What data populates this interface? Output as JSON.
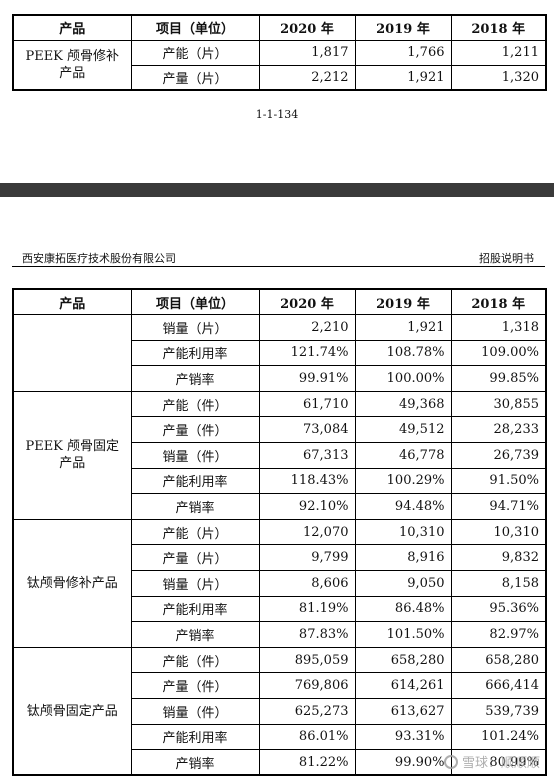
{
  "table1": {
    "headers": [
      "产品",
      "项目（单位）",
      "2020 年",
      "2019 年",
      "2018 年"
    ],
    "product": "PEEK 颅骨修补产品",
    "rows": [
      {
        "item": "产能（片）",
        "v2020": "1,817",
        "v2019": "1,766",
        "v2018": "1,211"
      },
      {
        "item": "产量（片）",
        "v2020": "2,212",
        "v2019": "1,921",
        "v2018": "1,320"
      }
    ]
  },
  "page_number": "1-1-134",
  "header": {
    "company": "西安康拓医疗技术股份有限公司",
    "doc_title": "招股说明书"
  },
  "table2": {
    "headers": [
      "产品",
      "项目（单位）",
      "2020 年",
      "2019 年",
      "2018 年"
    ],
    "groups": [
      {
        "product": "",
        "rows": [
          {
            "item": "销量（片）",
            "v2020": "2,210",
            "v2019": "1,921",
            "v2018": "1,318"
          },
          {
            "item": "产能利用率",
            "v2020": "121.74%",
            "v2019": "108.78%",
            "v2018": "109.00%"
          },
          {
            "item": "产销率",
            "v2020": "99.91%",
            "v2019": "100.00%",
            "v2018": "99.85%"
          }
        ]
      },
      {
        "product": "PEEK 颅骨固定产品",
        "rows": [
          {
            "item": "产能（件）",
            "v2020": "61,710",
            "v2019": "49,368",
            "v2018": "30,855"
          },
          {
            "item": "产量（件）",
            "v2020": "73,084",
            "v2019": "49,512",
            "v2018": "28,233"
          },
          {
            "item": "销量（件）",
            "v2020": "67,313",
            "v2019": "46,778",
            "v2018": "26,739"
          },
          {
            "item": "产能利用率",
            "v2020": "118.43%",
            "v2019": "100.29%",
            "v2018": "91.50%"
          },
          {
            "item": "产销率",
            "v2020": "92.10%",
            "v2019": "94.48%",
            "v2018": "94.71%"
          }
        ]
      },
      {
        "product": "钛颅骨修补产品",
        "rows": [
          {
            "item": "产能（片）",
            "v2020": "12,070",
            "v2019": "10,310",
            "v2018": "10,310"
          },
          {
            "item": "产量（片）",
            "v2020": "9,799",
            "v2019": "8,916",
            "v2018": "9,832"
          },
          {
            "item": "销量（片）",
            "v2020": "8,606",
            "v2019": "9,050",
            "v2018": "8,158"
          },
          {
            "item": "产能利用率",
            "v2020": "81.19%",
            "v2019": "86.48%",
            "v2018": "95.36%"
          },
          {
            "item": "产销率",
            "v2020": "87.83%",
            "v2019": "101.50%",
            "v2018": "82.97%"
          }
        ]
      },
      {
        "product": "钛颅骨固定产品",
        "rows": [
          {
            "item": "产能（件）",
            "v2020": "895,059",
            "v2019": "658,280",
            "v2018": "658,280"
          },
          {
            "item": "产量（件）",
            "v2020": "769,806",
            "v2019": "614,261",
            "v2018": "666,414"
          },
          {
            "item": "销量（件）",
            "v2020": "625,273",
            "v2019": "613,627",
            "v2018": "539,739"
          },
          {
            "item": "产能利用率",
            "v2020": "86.01%",
            "v2019": "93.31%",
            "v2018": "101.24%"
          },
          {
            "item": "产销率",
            "v2020": "81.22%",
            "v2019": "99.90%",
            "v2018": "80.99%"
          }
        ]
      }
    ]
  },
  "watermark": {
    "text": "雪球：顺顺顺",
    "icon": "snowball-logo-icon"
  }
}
